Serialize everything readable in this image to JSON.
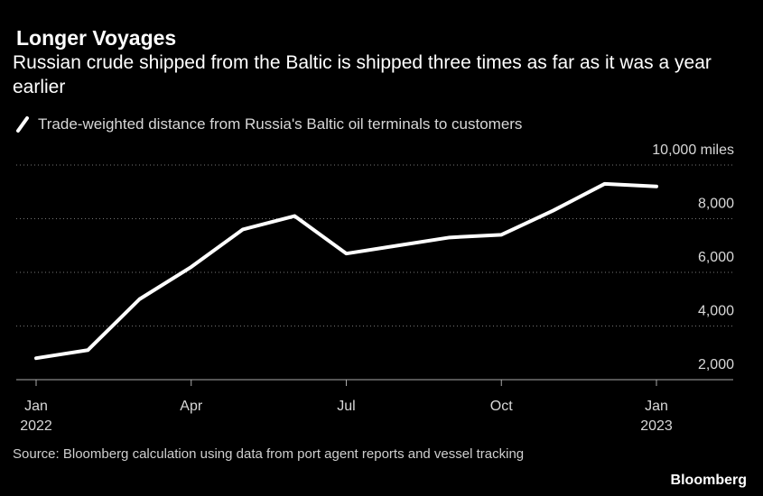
{
  "chart_data": {
    "type": "line",
    "title": "Longer Voyages",
    "subtitle": "Russian crude shipped from the Baltic is shipped three times as far as it was a year earlier",
    "categories": [
      "Jan",
      null,
      null,
      "Apr",
      null,
      null,
      "Jul",
      null,
      null,
      "Oct",
      null,
      null,
      "Jan"
    ],
    "category_years": [
      "2022",
      null,
      null,
      null,
      null,
      null,
      null,
      null,
      null,
      null,
      null,
      null,
      "2023"
    ],
    "series": [
      {
        "name": "Trade-weighted distance from Russia's Baltic oil terminals to customers",
        "color": "#ffffff",
        "values": [
          2800,
          3100,
          5000,
          6200,
          7600,
          8100,
          6700,
          7000,
          7300,
          7400,
          8300,
          9300,
          9200
        ]
      }
    ],
    "ylim": [
      2000,
      10000
    ],
    "yticks": [
      {
        "value": 2000,
        "label": "2,000"
      },
      {
        "value": 4000,
        "label": "4,000"
      },
      {
        "value": 6000,
        "label": "6,000"
      },
      {
        "value": 8000,
        "label": "8,000"
      },
      {
        "value": 10000,
        "label": "10,000 miles"
      }
    ],
    "grid": true,
    "source": "Source: Bloomberg calculation using data from port agent reports and vessel tracking",
    "brand": "Bloomberg"
  }
}
